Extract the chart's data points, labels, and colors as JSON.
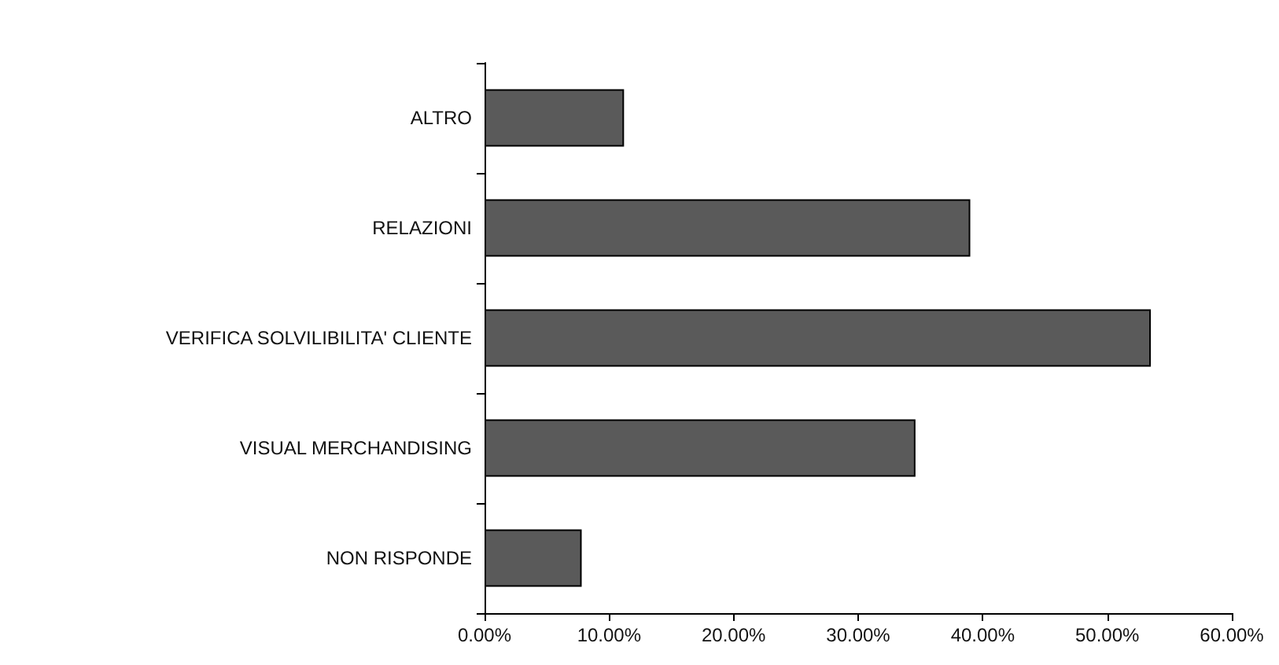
{
  "chart_data": {
    "type": "bar",
    "orientation": "horizontal",
    "categories": [
      "ALTRO",
      "RELAZIONI",
      "VERIFICA SOLVILIBILITA' CLIENTE",
      "VISUAL MERCHANDISING",
      "NON RISPONDE"
    ],
    "values": [
      11.2,
      39.0,
      53.5,
      34.6,
      7.8
    ],
    "color": "#5a5a5a",
    "xlim": [
      0,
      60
    ],
    "xticks": [
      {
        "value": 0,
        "label": "0.00%"
      },
      {
        "value": 10,
        "label": "10.00%"
      },
      {
        "value": 20,
        "label": "20.00%"
      },
      {
        "value": 30,
        "label": "30.00%"
      },
      {
        "value": 40,
        "label": "40.00%"
      },
      {
        "value": 50,
        "label": "50.00%"
      },
      {
        "value": 60,
        "label": "60.00%"
      }
    ],
    "grid": false
  }
}
